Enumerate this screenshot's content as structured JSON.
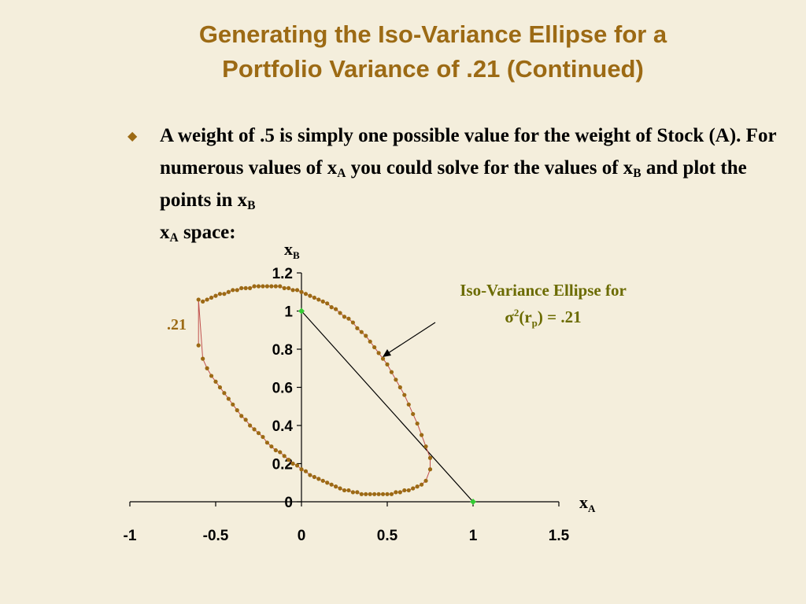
{
  "title": {
    "line1": "Generating the Iso-Variance Ellipse for a",
    "line2": "Portfolio Variance of  .21 (Continued)"
  },
  "bullet": {
    "p1": "A weight of .5 is simply one possible value for the weight of Stock (A). For numerous values of x",
    "p1_sub": "A",
    "p2": " you could solve for the values of x",
    "p2_sub": "B",
    "p3": " and plot the points in x",
    "p3_sub": "B",
    "p4": " x",
    "p4_sub": "A",
    "p5": "  space:"
  },
  "colors": {
    "title": "#9c6a14",
    "ellipse_marker": "#9c6a14",
    "ellipse_line": "#c0504d",
    "endpoint": "#33cc33",
    "annotation": "#6b6b00",
    "background": "#f4eedc"
  },
  "chart_data": {
    "type": "scatter",
    "xlabel": "x",
    "xlabel_sub": "A",
    "ylabel": "x",
    "ylabel_sub": "B",
    "xlim": [
      -1,
      1.5
    ],
    "ylim": [
      0,
      1.2
    ],
    "x_ticks": [
      "-1",
      "-0.5",
      "0",
      "0.5",
      "1",
      "1.5"
    ],
    "y_ticks": [
      "0",
      "0.2",
      "0.4",
      "0.6",
      "0.8",
      "1",
      "1.2"
    ],
    "grid": false,
    "series": [
      {
        "label": ".21",
        "marker": "dot",
        "points": [
          [
            -0.6,
            0.82
          ],
          [
            -0.6,
            1.06
          ],
          [
            -0.575,
            0.75
          ],
          [
            -0.55,
            0.7
          ],
          [
            -0.525,
            0.66
          ],
          [
            -0.5,
            0.63
          ],
          [
            -0.475,
            0.6
          ],
          [
            -0.45,
            0.57
          ],
          [
            -0.425,
            0.54
          ],
          [
            -0.4,
            0.51
          ],
          [
            -0.375,
            0.48
          ],
          [
            -0.35,
            0.45
          ],
          [
            -0.325,
            0.43
          ],
          [
            -0.3,
            0.4
          ],
          [
            -0.275,
            0.38
          ],
          [
            -0.25,
            0.36
          ],
          [
            -0.225,
            0.34
          ],
          [
            -0.2,
            0.31
          ],
          [
            -0.175,
            0.29
          ],
          [
            -0.15,
            0.27
          ],
          [
            -0.125,
            0.26
          ],
          [
            -0.1,
            0.24
          ],
          [
            -0.075,
            0.22
          ],
          [
            -0.05,
            0.2
          ],
          [
            -0.025,
            0.19
          ],
          [
            0.0,
            0.17
          ],
          [
            0.025,
            0.16
          ],
          [
            0.05,
            0.14
          ],
          [
            0.075,
            0.13
          ],
          [
            0.1,
            0.12
          ],
          [
            0.125,
            0.11
          ],
          [
            0.15,
            0.1
          ],
          [
            0.175,
            0.09
          ],
          [
            0.2,
            0.08
          ],
          [
            0.225,
            0.07
          ],
          [
            0.25,
            0.06
          ],
          [
            0.275,
            0.06
          ],
          [
            0.3,
            0.05
          ],
          [
            0.325,
            0.05
          ],
          [
            0.35,
            0.04
          ],
          [
            0.375,
            0.04
          ],
          [
            0.4,
            0.04
          ],
          [
            0.425,
            0.04
          ],
          [
            0.45,
            0.04
          ],
          [
            0.475,
            0.04
          ],
          [
            0.5,
            0.04
          ],
          [
            0.525,
            0.04
          ],
          [
            0.55,
            0.05
          ],
          [
            0.575,
            0.05
          ],
          [
            0.6,
            0.06
          ],
          [
            0.625,
            0.06
          ],
          [
            0.65,
            0.07
          ],
          [
            0.675,
            0.08
          ],
          [
            0.7,
            0.09
          ],
          [
            0.725,
            0.11
          ],
          [
            0.75,
            0.17
          ],
          [
            0.75,
            0.23
          ],
          [
            0.725,
            0.29
          ],
          [
            0.7,
            0.35
          ],
          [
            0.675,
            0.41
          ],
          [
            0.65,
            0.46
          ],
          [
            0.625,
            0.51
          ],
          [
            0.6,
            0.56
          ],
          [
            0.575,
            0.6
          ],
          [
            0.55,
            0.64
          ],
          [
            0.525,
            0.68
          ],
          [
            0.5,
            0.72
          ],
          [
            0.475,
            0.75
          ],
          [
            0.45,
            0.78
          ],
          [
            0.425,
            0.81
          ],
          [
            0.4,
            0.84
          ],
          [
            0.375,
            0.87
          ],
          [
            0.35,
            0.89
          ],
          [
            0.325,
            0.91
          ],
          [
            0.3,
            0.94
          ],
          [
            0.275,
            0.96
          ],
          [
            0.25,
            0.97
          ],
          [
            0.225,
            0.99
          ],
          [
            0.2,
            1.01
          ],
          [
            0.175,
            1.02
          ],
          [
            0.15,
            1.04
          ],
          [
            0.125,
            1.05
          ],
          [
            0.1,
            1.06
          ],
          [
            0.075,
            1.07
          ],
          [
            0.05,
            1.08
          ],
          [
            0.025,
            1.09
          ],
          [
            0.0,
            1.1
          ],
          [
            -0.025,
            1.11
          ],
          [
            -0.05,
            1.11
          ],
          [
            -0.075,
            1.12
          ],
          [
            -0.1,
            1.12
          ],
          [
            -0.125,
            1.13
          ],
          [
            -0.15,
            1.13
          ],
          [
            -0.175,
            1.13
          ],
          [
            -0.2,
            1.13
          ],
          [
            -0.225,
            1.13
          ],
          [
            -0.25,
            1.13
          ],
          [
            -0.275,
            1.13
          ],
          [
            -0.3,
            1.12
          ],
          [
            -0.325,
            1.12
          ],
          [
            -0.35,
            1.12
          ],
          [
            -0.375,
            1.11
          ],
          [
            -0.4,
            1.11
          ],
          [
            -0.425,
            1.1
          ],
          [
            -0.45,
            1.09
          ],
          [
            -0.475,
            1.09
          ],
          [
            -0.5,
            1.08
          ],
          [
            -0.525,
            1.07
          ],
          [
            -0.55,
            1.06
          ],
          [
            -0.575,
            1.05
          ]
        ]
      },
      {
        "label": "",
        "marker": "diamond",
        "points": [
          [
            0,
            1
          ],
          [
            1,
            0
          ]
        ]
      }
    ],
    "annotation": {
      "line1": "Iso-Variance Ellipse for",
      "line2_sigma": "σ",
      "line2_sup": "2",
      "line2_mid": "(r",
      "line2_sub": "p",
      "line2_end": ") = .21"
    }
  }
}
